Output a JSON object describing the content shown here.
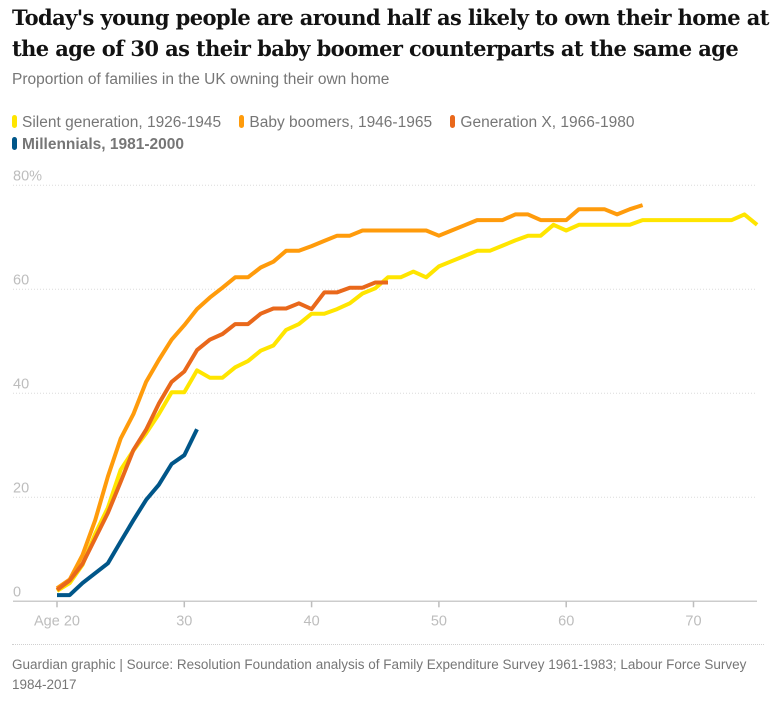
{
  "header": {
    "title": "Today's young people are around half as likely to own their home at the age of 30 as their baby boomer counterparts at the same age",
    "subtitle": "Proportion of families in the UK owning their own home"
  },
  "footer": {
    "source": "Guardian graphic | Source: Resolution Foundation analysis of Family Expenditure Survey 1961-1983; Labour Force Survey 1984-2017"
  },
  "chart_data": {
    "type": "line",
    "title": "Today's young people are around half as likely to own their home at the age of 30 as their baby boomer counterparts at the same age",
    "subtitle": "Proportion of families in the UK owning their own home",
    "xlabel": "",
    "ylabel": "",
    "xlim": [
      20,
      75
    ],
    "ylim": [
      0,
      80
    ],
    "grid": true,
    "legend": "top-left",
    "x_ticks": [
      {
        "value": 20,
        "label": "Age 20"
      },
      {
        "value": 30,
        "label": "30"
      },
      {
        "value": 40,
        "label": "40"
      },
      {
        "value": 50,
        "label": "50"
      },
      {
        "value": 60,
        "label": "60"
      },
      {
        "value": 70,
        "label": "70"
      }
    ],
    "y_ticks": [
      {
        "value": 0,
        "label": "0"
      },
      {
        "value": 20,
        "label": "20"
      },
      {
        "value": 40,
        "label": "40"
      },
      {
        "value": 60,
        "label": "60"
      },
      {
        "value": 80,
        "label": "80%"
      }
    ],
    "series": [
      {
        "name": "Silent generation, 1926-1945",
        "color": "#ffe500",
        "bold": false,
        "start_age": 20,
        "values": [
          2,
          3.5,
          7,
          13,
          18,
          25.3,
          29,
          32.3,
          36,
          40.2,
          40.2,
          44.4,
          43,
          43,
          45,
          46.2,
          48.2,
          49.2,
          52.2,
          53.3,
          55.3,
          55.3,
          56.2,
          57.3,
          59.2,
          60.2,
          62.3,
          62.3,
          63.4,
          62.3,
          64.4,
          65.4,
          66.4,
          67.4,
          67.4,
          68.4,
          69.4,
          70.3,
          70.3,
          72.4,
          71.3,
          72.4,
          72.4,
          72.4,
          72.4,
          72.4,
          73.3,
          73.3,
          73.3,
          73.3,
          73.3,
          73.3,
          73.3,
          73.3,
          74.4,
          72.4
        ]
      },
      {
        "name": "Baby boomers, 1946-1965",
        "color": "#ff9b0b",
        "bold": false,
        "start_age": 20,
        "values": [
          2.5,
          4.2,
          8.9,
          15.6,
          24,
          31.3,
          36,
          42.2,
          46.4,
          50.3,
          53.1,
          56.2,
          58.4,
          60.3,
          62.3,
          62.3,
          64.2,
          65.3,
          67.4,
          67.4,
          68.3,
          69.3,
          70.3,
          70.3,
          71.3,
          71.3,
          71.3,
          71.3,
          71.3,
          71.3,
          70.3,
          71.3,
          72.3,
          73.3,
          73.3,
          73.3,
          74.4,
          74.4,
          73.3,
          73.3,
          73.3,
          75.4,
          75.4,
          75.4,
          74.4,
          75.4,
          76.2
        ]
      },
      {
        "name": "Generation X, 1966-1980",
        "color": "#e9681b",
        "bold": false,
        "start_age": 20,
        "values": [
          2.2,
          4,
          7.2,
          12.1,
          17,
          23,
          29.1,
          33,
          38,
          42.2,
          44.2,
          48.3,
          50.3,
          51.4,
          53.3,
          53.3,
          55.3,
          56.3,
          56.3,
          57.3,
          56.2,
          59.4,
          59.4,
          60.3,
          60.3,
          61.3,
          61.3
        ]
      },
      {
        "name": "Millennials, 1981-2000",
        "color": "#005689",
        "bold": true,
        "start_age": 20,
        "values": [
          1.2,
          1.2,
          3.5,
          5.4,
          7.3,
          11.5,
          15.6,
          19.5,
          22.4,
          26.4,
          28.1,
          33.1
        ]
      }
    ]
  }
}
